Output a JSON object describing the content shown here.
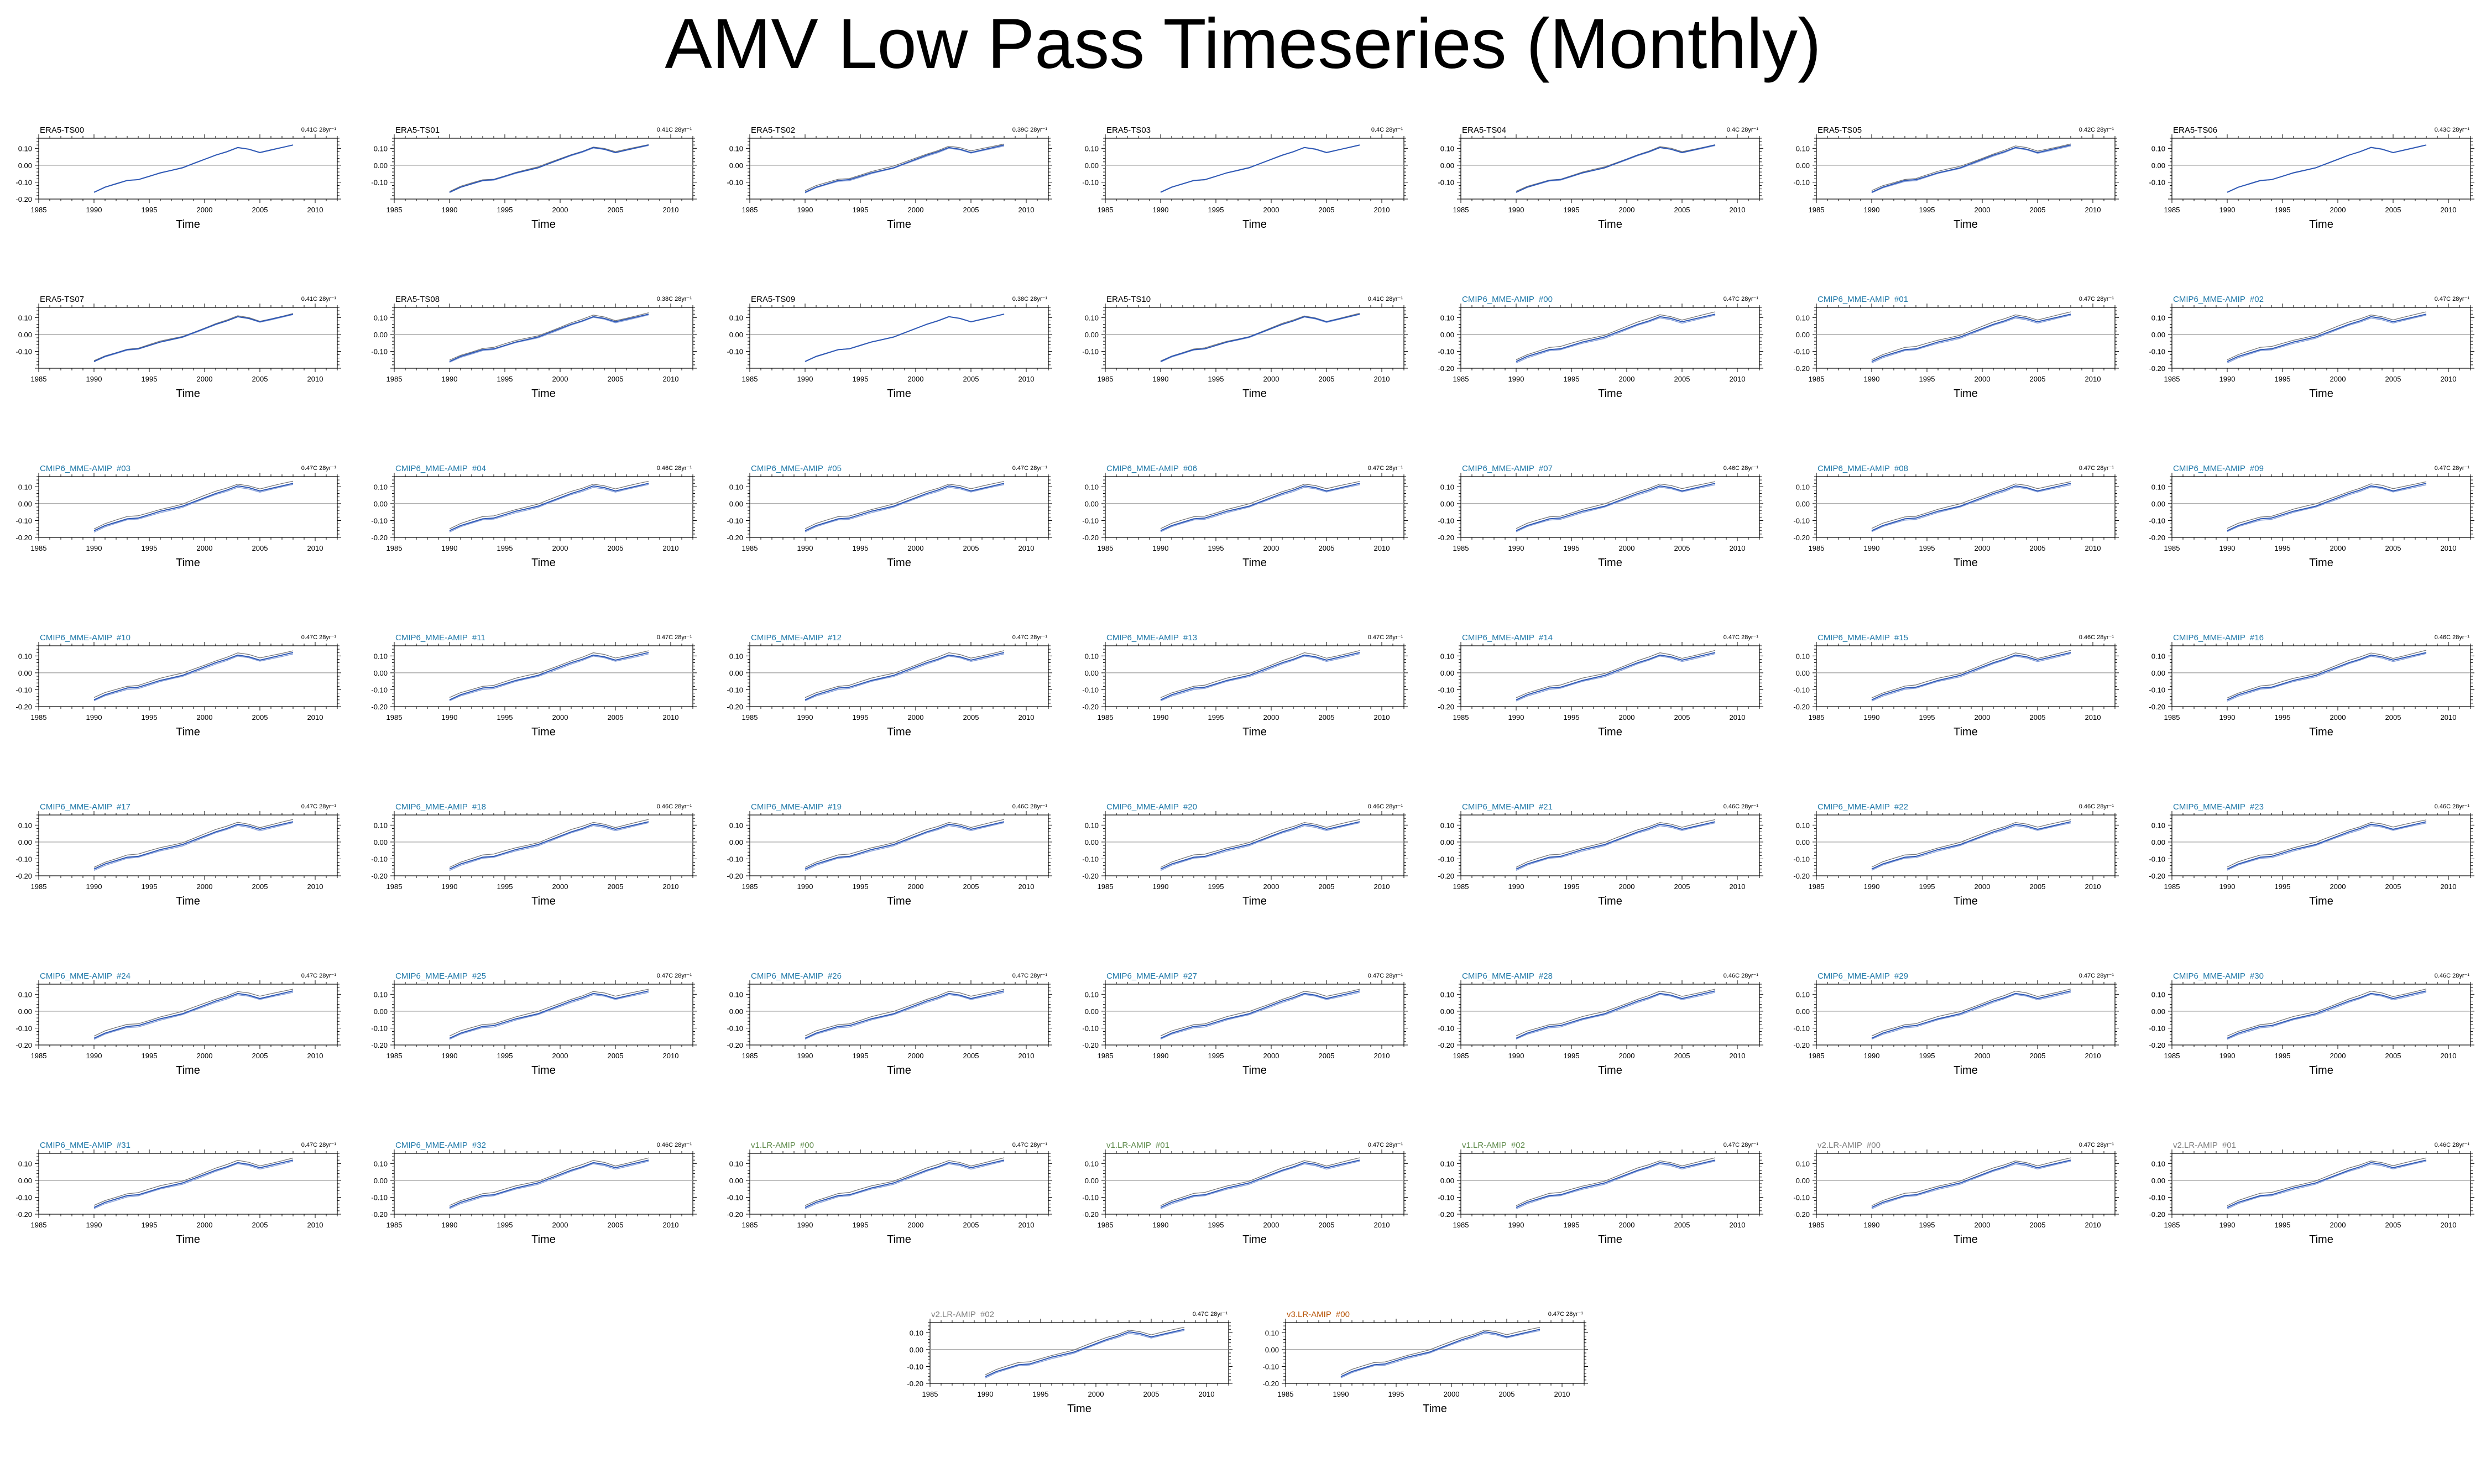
{
  "title": "AMV Low Pass Timeseries (Monthly)",
  "axis": {
    "xlabel": "Time",
    "xticks": [
      1985,
      1990,
      1995,
      2000,
      2005,
      2010
    ],
    "xlim": [
      1985,
      2012
    ],
    "ylim": [
      -0.2,
      0.16
    ]
  },
  "colors": {
    "ERA5": "#000000",
    "CMIP6_MME-AMIP": "#1f78a8",
    "v1.LR-AMIP": "#5e8a4a",
    "v2.LR-AMIP": "#7f7f7f",
    "v3.LR-AMIP": "#b8560a",
    "line_dark": "#2f59b6",
    "line_light": "#8aa2dc",
    "line_gray": "#777777"
  },
  "chart_data": [
    {
      "type": "line",
      "title": "ERA5-TS00",
      "group": "ERA5",
      "trend_label": "0.41C 28yr⁻¹",
      "y_ticks": [
        0.1,
        0.0,
        -0.1,
        -0.2
      ],
      "y_tick_labels": [
        "0.10",
        "0.00",
        "-0.10",
        "-0.20"
      ]
    },
    {
      "type": "line",
      "title": "ERA5-TS01",
      "group": "ERA5",
      "trend_label": "0.41C 28yr⁻¹",
      "y_ticks": [
        0.1,
        0.0,
        -0.1
      ],
      "y_tick_labels": [
        "0.10",
        "0.00",
        "-0.10"
      ]
    },
    {
      "type": "line",
      "title": "ERA5-TS02",
      "group": "ERA5",
      "trend_label": "0.39C 28yr⁻¹",
      "y_ticks": [
        0.1,
        0.0,
        -0.1
      ],
      "y_tick_labels": [
        "0.10",
        "0.00",
        "-0.10"
      ]
    },
    {
      "type": "line",
      "title": "ERA5-TS03",
      "group": "ERA5",
      "trend_label": "0.4C 28yr⁻¹",
      "y_ticks": [
        0.1,
        0.0,
        -0.1
      ],
      "y_tick_labels": [
        "0.10",
        "0.00",
        "-0.10"
      ]
    },
    {
      "type": "line",
      "title": "ERA5-TS04",
      "group": "ERA5",
      "trend_label": "0.4C 28yr⁻¹",
      "y_ticks": [
        0.1,
        0.0,
        -0.1
      ],
      "y_tick_labels": [
        "0.10",
        "0.00",
        "-0.10"
      ]
    },
    {
      "type": "line",
      "title": "ERA5-TS05",
      "group": "ERA5",
      "trend_label": "0.42C 28yr⁻¹",
      "y_ticks": [
        0.1,
        0.0,
        -0.1
      ],
      "y_tick_labels": [
        "0.10",
        "0.00",
        "-0.10"
      ]
    },
    {
      "type": "line",
      "title": "ERA5-TS06",
      "group": "ERA5",
      "trend_label": "0.43C 28yr⁻¹",
      "y_ticks": [
        0.1,
        0.0,
        -0.1
      ],
      "y_tick_labels": [
        "0.10",
        "0.00",
        "-0.10"
      ]
    },
    {
      "type": "line",
      "title": "ERA5-TS07",
      "group": "ERA5",
      "trend_label": "0.41C 28yr⁻¹",
      "y_ticks": [
        0.1,
        0.0,
        -0.1
      ],
      "y_tick_labels": [
        "0.10",
        "0.00",
        "-0.10"
      ]
    },
    {
      "type": "line",
      "title": "ERA5-TS08",
      "group": "ERA5",
      "trend_label": "0.38C 28yr⁻¹",
      "y_ticks": [
        0.1,
        0.0,
        -0.1
      ],
      "y_tick_labels": [
        "0.10",
        "0.00",
        "-0.10"
      ]
    },
    {
      "type": "line",
      "title": "ERA5-TS09",
      "group": "ERA5",
      "trend_label": "0.38C 28yr⁻¹",
      "y_ticks": [
        0.1,
        0.0,
        -0.1
      ],
      "y_tick_labels": [
        "0.10",
        "0.00",
        "-0.10"
      ]
    },
    {
      "type": "line",
      "title": "ERA5-TS10",
      "group": "ERA5",
      "trend_label": "0.41C 28yr⁻¹",
      "y_ticks": [
        0.1,
        0.0,
        -0.1
      ],
      "y_tick_labels": [
        "0.10",
        "0.00",
        "-0.10"
      ]
    },
    {
      "type": "line",
      "title": "CMIP6_MME-AMIP  #00",
      "group": "CMIP6_MME-AMIP",
      "trend_label": "0.47C 28yr⁻¹",
      "y_ticks": [
        0.1,
        0.0,
        -0.1,
        -0.2
      ],
      "y_tick_labels": [
        "0.10",
        "0.00",
        "-0.10",
        "-0.20"
      ]
    },
    {
      "type": "line",
      "title": "CMIP6_MME-AMIP  #01",
      "group": "CMIP6_MME-AMIP",
      "trend_label": "0.47C 28yr⁻¹",
      "y_ticks": [
        0.1,
        0.0,
        -0.1,
        -0.2
      ],
      "y_tick_labels": [
        "0.10",
        "0.00",
        "-0.10",
        "-0.20"
      ]
    },
    {
      "type": "line",
      "title": "CMIP6_MME-AMIP  #02",
      "group": "CMIP6_MME-AMIP",
      "trend_label": "0.47C 28yr⁻¹",
      "y_ticks": [
        0.1,
        0.0,
        -0.1,
        -0.2
      ],
      "y_tick_labels": [
        "0.10",
        "0.00",
        "-0.10",
        "-0.20"
      ]
    },
    {
      "type": "line",
      "title": "CMIP6_MME-AMIP  #03",
      "group": "CMIP6_MME-AMIP",
      "trend_label": "0.47C 28yr⁻¹",
      "y_ticks": [
        0.1,
        0.0,
        -0.1,
        -0.2
      ],
      "y_tick_labels": [
        "0.10",
        "0.00",
        "-0.10",
        "-0.20"
      ]
    },
    {
      "type": "line",
      "title": "CMIP6_MME-AMIP  #04",
      "group": "CMIP6_MME-AMIP",
      "trend_label": "0.46C 28yr⁻¹",
      "y_ticks": [
        0.1,
        0.0,
        -0.1,
        -0.2
      ],
      "y_tick_labels": [
        "0.10",
        "0.00",
        "-0.10",
        "-0.20"
      ]
    },
    {
      "type": "line",
      "title": "CMIP6_MME-AMIP  #05",
      "group": "CMIP6_MME-AMIP",
      "trend_label": "0.47C 28yr⁻¹",
      "y_ticks": [
        0.1,
        0.0,
        -0.1,
        -0.2
      ],
      "y_tick_labels": [
        "0.10",
        "0.00",
        "-0.10",
        "-0.20"
      ]
    },
    {
      "type": "line",
      "title": "CMIP6_MME-AMIP  #06",
      "group": "CMIP6_MME-AMIP",
      "trend_label": "0.47C 28yr⁻¹",
      "y_ticks": [
        0.1,
        0.0,
        -0.1,
        -0.2
      ],
      "y_tick_labels": [
        "0.10",
        "0.00",
        "-0.10",
        "-0.20"
      ]
    },
    {
      "type": "line",
      "title": "CMIP6_MME-AMIP  #07",
      "group": "CMIP6_MME-AMIP",
      "trend_label": "0.46C 28yr⁻¹",
      "y_ticks": [
        0.1,
        0.0,
        -0.1,
        -0.2
      ],
      "y_tick_labels": [
        "0.10",
        "0.00",
        "-0.10",
        "-0.20"
      ]
    },
    {
      "type": "line",
      "title": "CMIP6_MME-AMIP  #08",
      "group": "CMIP6_MME-AMIP",
      "trend_label": "0.47C 28yr⁻¹",
      "y_ticks": [
        0.1,
        0.0,
        -0.1,
        -0.2
      ],
      "y_tick_labels": [
        "0.10",
        "0.00",
        "-0.10",
        "-0.20"
      ]
    },
    {
      "type": "line",
      "title": "CMIP6_MME-AMIP  #09",
      "group": "CMIP6_MME-AMIP",
      "trend_label": "0.47C 28yr⁻¹",
      "y_ticks": [
        0.1,
        0.0,
        -0.1,
        -0.2
      ],
      "y_tick_labels": [
        "0.10",
        "0.00",
        "-0.10",
        "-0.20"
      ]
    },
    {
      "type": "line",
      "title": "CMIP6_MME-AMIP  #10",
      "group": "CMIP6_MME-AMIP",
      "trend_label": "0.47C 28yr⁻¹",
      "y_ticks": [
        0.1,
        0.0,
        -0.1,
        -0.2
      ],
      "y_tick_labels": [
        "0.10",
        "0.00",
        "-0.10",
        "-0.20"
      ]
    },
    {
      "type": "line",
      "title": "CMIP6_MME-AMIP  #11",
      "group": "CMIP6_MME-AMIP",
      "trend_label": "0.47C 28yr⁻¹",
      "y_ticks": [
        0.1,
        0.0,
        -0.1,
        -0.2
      ],
      "y_tick_labels": [
        "0.10",
        "0.00",
        "-0.10",
        "-0.20"
      ]
    },
    {
      "type": "line",
      "title": "CMIP6_MME-AMIP  #12",
      "group": "CMIP6_MME-AMIP",
      "trend_label": "0.47C 28yr⁻¹",
      "y_ticks": [
        0.1,
        0.0,
        -0.1,
        -0.2
      ],
      "y_tick_labels": [
        "0.10",
        "0.00",
        "-0.10",
        "-0.20"
      ]
    },
    {
      "type": "line",
      "title": "CMIP6_MME-AMIP  #13",
      "group": "CMIP6_MME-AMIP",
      "trend_label": "0.47C 28yr⁻¹",
      "y_ticks": [
        0.1,
        0.0,
        -0.1,
        -0.2
      ],
      "y_tick_labels": [
        "0.10",
        "0.00",
        "-0.10",
        "-0.20"
      ]
    },
    {
      "type": "line",
      "title": "CMIP6_MME-AMIP  #14",
      "group": "CMIP6_MME-AMIP",
      "trend_label": "0.47C 28yr⁻¹",
      "y_ticks": [
        0.1,
        0.0,
        -0.1,
        -0.2
      ],
      "y_tick_labels": [
        "0.10",
        "0.00",
        "-0.10",
        "-0.20"
      ]
    },
    {
      "type": "line",
      "title": "CMIP6_MME-AMIP  #15",
      "group": "CMIP6_MME-AMIP",
      "trend_label": "0.46C 28yr⁻¹",
      "y_ticks": [
        0.1,
        0.0,
        -0.1,
        -0.2
      ],
      "y_tick_labels": [
        "0.10",
        "0.00",
        "-0.10",
        "-0.20"
      ]
    },
    {
      "type": "line",
      "title": "CMIP6_MME-AMIP  #16",
      "group": "CMIP6_MME-AMIP",
      "trend_label": "0.46C 28yr⁻¹",
      "y_ticks": [
        0.1,
        0.0,
        -0.1,
        -0.2
      ],
      "y_tick_labels": [
        "0.10",
        "0.00",
        "-0.10",
        "-0.20"
      ]
    },
    {
      "type": "line",
      "title": "CMIP6_MME-AMIP  #17",
      "group": "CMIP6_MME-AMIP",
      "trend_label": "0.47C 28yr⁻¹",
      "y_ticks": [
        0.1,
        0.0,
        -0.1,
        -0.2
      ],
      "y_tick_labels": [
        "0.10",
        "0.00",
        "-0.10",
        "-0.20"
      ]
    },
    {
      "type": "line",
      "title": "CMIP6_MME-AMIP  #18",
      "group": "CMIP6_MME-AMIP",
      "trend_label": "0.46C 28yr⁻¹",
      "y_ticks": [
        0.1,
        0.0,
        -0.1,
        -0.2
      ],
      "y_tick_labels": [
        "0.10",
        "0.00",
        "-0.10",
        "-0.20"
      ]
    },
    {
      "type": "line",
      "title": "CMIP6_MME-AMIP  #19",
      "group": "CMIP6_MME-AMIP",
      "trend_label": "0.46C 28yr⁻¹",
      "y_ticks": [
        0.1,
        0.0,
        -0.1,
        -0.2
      ],
      "y_tick_labels": [
        "0.10",
        "0.00",
        "-0.10",
        "-0.20"
      ]
    },
    {
      "type": "line",
      "title": "CMIP6_MME-AMIP  #20",
      "group": "CMIP6_MME-AMIP",
      "trend_label": "0.46C 28yr⁻¹",
      "y_ticks": [
        0.1,
        0.0,
        -0.1,
        -0.2
      ],
      "y_tick_labels": [
        "0.10",
        "0.00",
        "-0.10",
        "-0.20"
      ]
    },
    {
      "type": "line",
      "title": "CMIP6_MME-AMIP  #21",
      "group": "CMIP6_MME-AMIP",
      "trend_label": "0.46C 28yr⁻¹",
      "y_ticks": [
        0.1,
        0.0,
        -0.1,
        -0.2
      ],
      "y_tick_labels": [
        "0.10",
        "0.00",
        "-0.10",
        "-0.20"
      ]
    },
    {
      "type": "line",
      "title": "CMIP6_MME-AMIP  #22",
      "group": "CMIP6_MME-AMIP",
      "trend_label": "0.46C 28yr⁻¹",
      "y_ticks": [
        0.1,
        0.0,
        -0.1,
        -0.2
      ],
      "y_tick_labels": [
        "0.10",
        "0.00",
        "-0.10",
        "-0.20"
      ]
    },
    {
      "type": "line",
      "title": "CMIP6_MME-AMIP  #23",
      "group": "CMIP6_MME-AMIP",
      "trend_label": "0.46C 28yr⁻¹",
      "y_ticks": [
        0.1,
        0.0,
        -0.1,
        -0.2
      ],
      "y_tick_labels": [
        "0.10",
        "0.00",
        "-0.10",
        "-0.20"
      ]
    },
    {
      "type": "line",
      "title": "CMIP6_MME-AMIP  #24",
      "group": "CMIP6_MME-AMIP",
      "trend_label": "0.47C 28yr⁻¹",
      "y_ticks": [
        0.1,
        0.0,
        -0.1,
        -0.2
      ],
      "y_tick_labels": [
        "0.10",
        "0.00",
        "-0.10",
        "-0.20"
      ]
    },
    {
      "type": "line",
      "title": "CMIP6_MME-AMIP  #25",
      "group": "CMIP6_MME-AMIP",
      "trend_label": "0.47C 28yr⁻¹",
      "y_ticks": [
        0.1,
        0.0,
        -0.1,
        -0.2
      ],
      "y_tick_labels": [
        "0.10",
        "0.00",
        "-0.10",
        "-0.20"
      ]
    },
    {
      "type": "line",
      "title": "CMIP6_MME-AMIP  #26",
      "group": "CMIP6_MME-AMIP",
      "trend_label": "0.47C 28yr⁻¹",
      "y_ticks": [
        0.1,
        0.0,
        -0.1,
        -0.2
      ],
      "y_tick_labels": [
        "0.10",
        "0.00",
        "-0.10",
        "-0.20"
      ]
    },
    {
      "type": "line",
      "title": "CMIP6_MME-AMIP  #27",
      "group": "CMIP6_MME-AMIP",
      "trend_label": "0.47C 28yr⁻¹",
      "y_ticks": [
        0.1,
        0.0,
        -0.1,
        -0.2
      ],
      "y_tick_labels": [
        "0.10",
        "0.00",
        "-0.10",
        "-0.20"
      ]
    },
    {
      "type": "line",
      "title": "CMIP6_MME-AMIP  #28",
      "group": "CMIP6_MME-AMIP",
      "trend_label": "0.46C 28yr⁻¹",
      "y_ticks": [
        0.1,
        0.0,
        -0.1,
        -0.2
      ],
      "y_tick_labels": [
        "0.10",
        "0.00",
        "-0.10",
        "-0.20"
      ]
    },
    {
      "type": "line",
      "title": "CMIP6_MME-AMIP  #29",
      "group": "CMIP6_MME-AMIP",
      "trend_label": "0.47C 28yr⁻¹",
      "y_ticks": [
        0.1,
        0.0,
        -0.1,
        -0.2
      ],
      "y_tick_labels": [
        "0.10",
        "0.00",
        "-0.10",
        "-0.20"
      ]
    },
    {
      "type": "line",
      "title": "CMIP6_MME-AMIP  #30",
      "group": "CMIP6_MME-AMIP",
      "trend_label": "0.46C 28yr⁻¹",
      "y_ticks": [
        0.1,
        0.0,
        -0.1,
        -0.2
      ],
      "y_tick_labels": [
        "0.10",
        "0.00",
        "-0.10",
        "-0.20"
      ]
    },
    {
      "type": "line",
      "title": "CMIP6_MME-AMIP  #31",
      "group": "CMIP6_MME-AMIP",
      "trend_label": "0.47C 28yr⁻¹",
      "y_ticks": [
        0.1,
        0.0,
        -0.1,
        -0.2
      ],
      "y_tick_labels": [
        "0.10",
        "0.00",
        "-0.10",
        "-0.20"
      ]
    },
    {
      "type": "line",
      "title": "CMIP6_MME-AMIP  #32",
      "group": "CMIP6_MME-AMIP",
      "trend_label": "0.46C 28yr⁻¹",
      "y_ticks": [
        0.1,
        0.0,
        -0.1,
        -0.2
      ],
      "y_tick_labels": [
        "0.10",
        "0.00",
        "-0.10",
        "-0.20"
      ]
    },
    {
      "type": "line",
      "title": "v1.LR-AMIP  #00",
      "group": "v1.LR-AMIP",
      "trend_label": "0.47C 28yr⁻¹",
      "y_ticks": [
        0.1,
        0.0,
        -0.1,
        -0.2
      ],
      "y_tick_labels": [
        "0.10",
        "0.00",
        "-0.10",
        "-0.20"
      ]
    },
    {
      "type": "line",
      "title": "v1.LR-AMIP  #01",
      "group": "v1.LR-AMIP",
      "trend_label": "0.47C 28yr⁻¹",
      "y_ticks": [
        0.1,
        0.0,
        -0.1,
        -0.2
      ],
      "y_tick_labels": [
        "0.10",
        "0.00",
        "-0.10",
        "-0.20"
      ]
    },
    {
      "type": "line",
      "title": "v1.LR-AMIP  #02",
      "group": "v1.LR-AMIP",
      "trend_label": "0.47C 28yr⁻¹",
      "y_ticks": [
        0.1,
        0.0,
        -0.1,
        -0.2
      ],
      "y_tick_labels": [
        "0.10",
        "0.00",
        "-0.10",
        "-0.20"
      ]
    },
    {
      "type": "line",
      "title": "v2.LR-AMIP  #00",
      "group": "v2.LR-AMIP",
      "trend_label": "0.47C 28yr⁻¹",
      "y_ticks": [
        0.1,
        0.0,
        -0.1,
        -0.2
      ],
      "y_tick_labels": [
        "0.10",
        "0.00",
        "-0.10",
        "-0.20"
      ]
    },
    {
      "type": "line",
      "title": "v2.LR-AMIP  #01",
      "group": "v2.LR-AMIP",
      "trend_label": "0.46C 28yr⁻¹",
      "y_ticks": [
        0.1,
        0.0,
        -0.1,
        -0.2
      ],
      "y_tick_labels": [
        "0.10",
        "0.00",
        "-0.10",
        "-0.20"
      ]
    },
    {
      "type": "line",
      "title": "v2.LR-AMIP  #02",
      "group": "v2.LR-AMIP",
      "trend_label": "0.47C 28yr⁻¹",
      "y_ticks": [
        0.1,
        0.0,
        -0.1,
        -0.2
      ],
      "y_tick_labels": [
        "0.10",
        "0.00",
        "-0.10",
        "-0.20"
      ]
    },
    {
      "type": "line",
      "title": "v3.LR-AMIP  #00",
      "group": "v3.LR-AMIP",
      "trend_label": "0.47C 28yr⁻¹",
      "y_ticks": [
        0.1,
        0.0,
        -0.1,
        -0.2
      ],
      "y_tick_labels": [
        "0.10",
        "0.00",
        "-0.10",
        "-0.20"
      ]
    }
  ],
  "series_shape": {
    "x": [
      1990,
      1991,
      1992,
      1993,
      1994,
      1995,
      1996,
      1997,
      1998,
      1999,
      2000,
      2001,
      2002,
      2003,
      2004,
      2005,
      2006,
      2007,
      2008
    ],
    "y": [
      -0.16,
      -0.13,
      -0.11,
      -0.09,
      -0.085,
      -0.065,
      -0.045,
      -0.03,
      -0.015,
      0.01,
      0.035,
      0.06,
      0.08,
      0.105,
      0.095,
      0.075,
      0.09,
      0.105,
      0.12
    ]
  }
}
